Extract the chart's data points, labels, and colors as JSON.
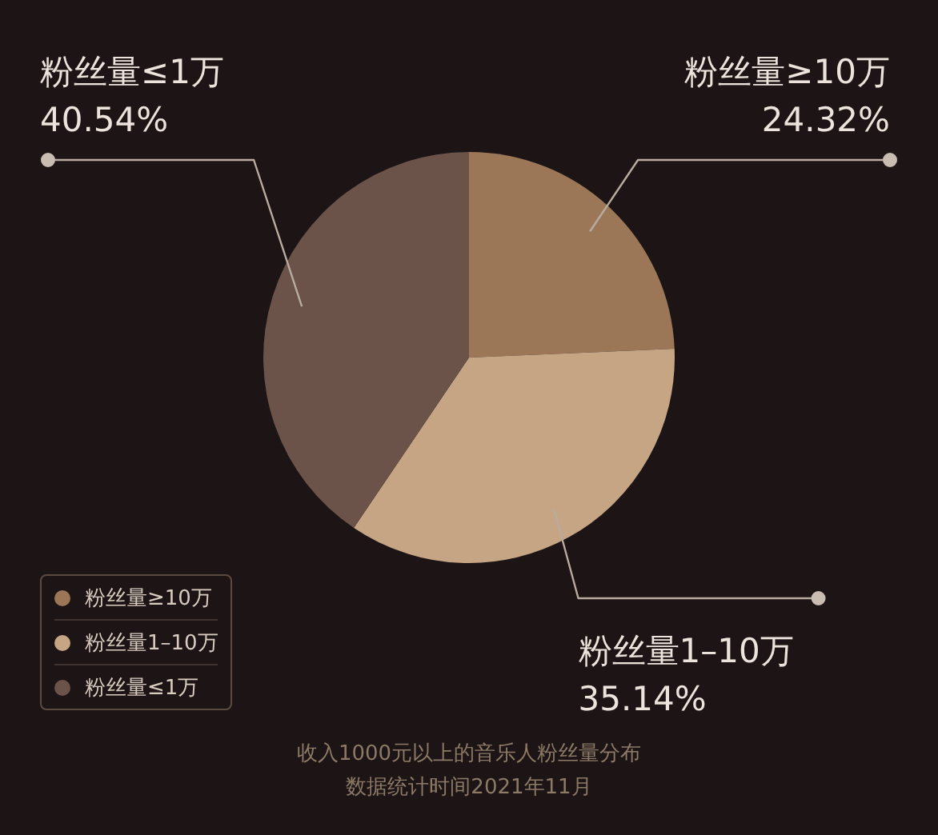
{
  "chart_data": {
    "type": "pie",
    "title": "收入1000元以上的音乐人粉丝量分布",
    "annotations": [
      "数据统计时间2021年11月"
    ],
    "categories": [
      "粉丝量≥10万",
      "粉丝量1–10万",
      "粉丝量≤1万"
    ],
    "values": [
      24.32,
      35.14,
      40.54
    ],
    "colors": [
      "#9b7758",
      "#c6a585",
      "#6b5349"
    ],
    "value_labels": [
      "24.32%",
      "35.14%",
      "40.54%"
    ],
    "legend": "bottom left"
  }
}
